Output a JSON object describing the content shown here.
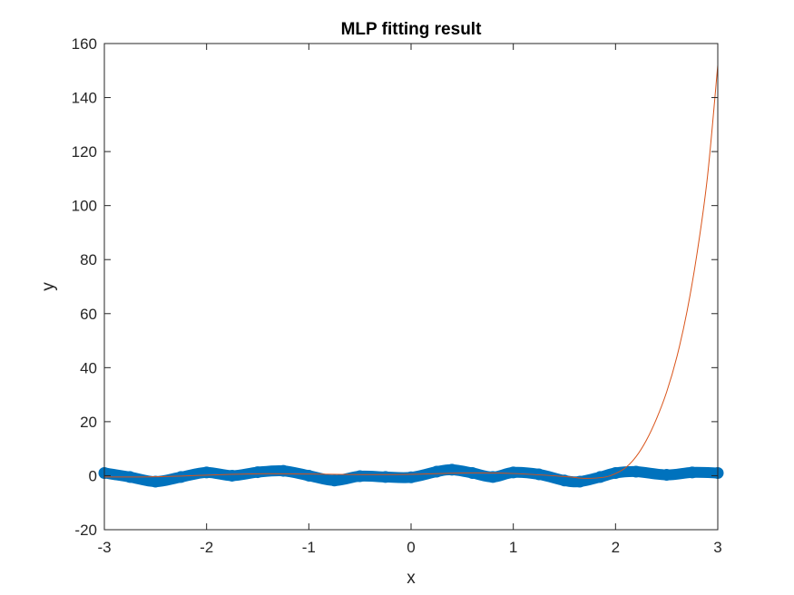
{
  "chart_data": {
    "type": "scatter",
    "title": "MLP fitting result",
    "xlabel": "x",
    "ylabel": "y",
    "xlim": [
      -3,
      3
    ],
    "ylim": [
      -20,
      160
    ],
    "xticks": [
      -3,
      -2,
      -1,
      0,
      1,
      2,
      3
    ],
    "yticks": [
      -20,
      0,
      20,
      40,
      60,
      80,
      100,
      120,
      140,
      160
    ],
    "grid": false,
    "legend": "none",
    "colors": {
      "data": "#0072BD",
      "fit": "#D95319",
      "axes": "#262626"
    },
    "series": [
      {
        "kind": "scatter-markers",
        "x": [
          -3.0,
          -2.75,
          -2.5,
          -2.25,
          -2.0,
          -1.75,
          -1.5,
          -1.25,
          -1.0,
          -0.75,
          -0.5,
          -0.25,
          0.0,
          0.25,
          0.4,
          0.6,
          0.8,
          1.0,
          1.25,
          1.5,
          1.65,
          1.85,
          2.0,
          2.2,
          2.5,
          2.75,
          3.0
        ],
        "y": [
          1.0,
          -0.5,
          -2.2,
          -0.5,
          1.2,
          0.0,
          1.3,
          1.8,
          0.0,
          -1.8,
          -0.2,
          -0.5,
          -0.6,
          1.5,
          2.2,
          1.0,
          -0.5,
          1.2,
          0.5,
          -1.8,
          -2.2,
          -0.5,
          1.0,
          1.5,
          0.3,
          1.2,
          1.0
        ]
      },
      {
        "kind": "line",
        "x": [
          -3.0,
          -2.5,
          -2.0,
          -1.5,
          -1.0,
          -0.5,
          0.0,
          0.5,
          1.0,
          1.5,
          1.7,
          1.9,
          2.0,
          2.1,
          2.2,
          2.3,
          2.4,
          2.5,
          2.6,
          2.7,
          2.8,
          2.9,
          3.0
        ],
        "y": [
          -0.5,
          -0.4,
          0.2,
          0.7,
          0.6,
          0.4,
          0.5,
          1.0,
          0.8,
          -0.3,
          -1.0,
          -0.5,
          0.8,
          3.0,
          7.0,
          13.0,
          21.0,
          31.0,
          44.0,
          61.0,
          83.0,
          111.0,
          152.0
        ]
      }
    ]
  }
}
